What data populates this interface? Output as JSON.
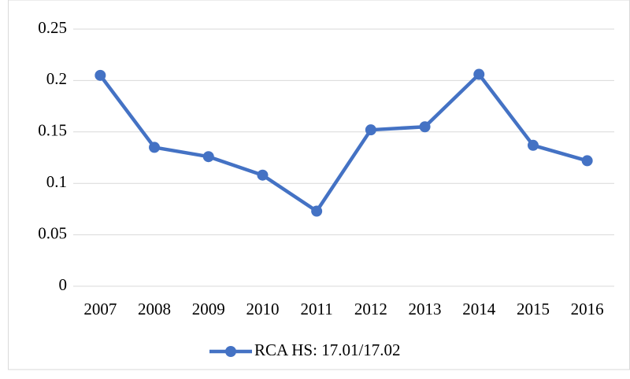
{
  "chart_data": {
    "type": "line",
    "categories": [
      "2007",
      "2008",
      "2009",
      "2010",
      "2011",
      "2012",
      "2013",
      "2014",
      "2015",
      "2016"
    ],
    "series": [
      {
        "name": "RCA HS: 17.01/17.02",
        "color": "#4472c4",
        "values": [
          0.205,
          0.135,
          0.126,
          0.108,
          0.073,
          0.152,
          0.155,
          0.206,
          0.137,
          0.122
        ]
      }
    ],
    "ylim": [
      0,
      0.25
    ],
    "yticks": [
      0,
      0.05,
      0.1,
      0.15,
      0.2,
      0.25
    ],
    "grid": true,
    "legend": "bottom"
  }
}
